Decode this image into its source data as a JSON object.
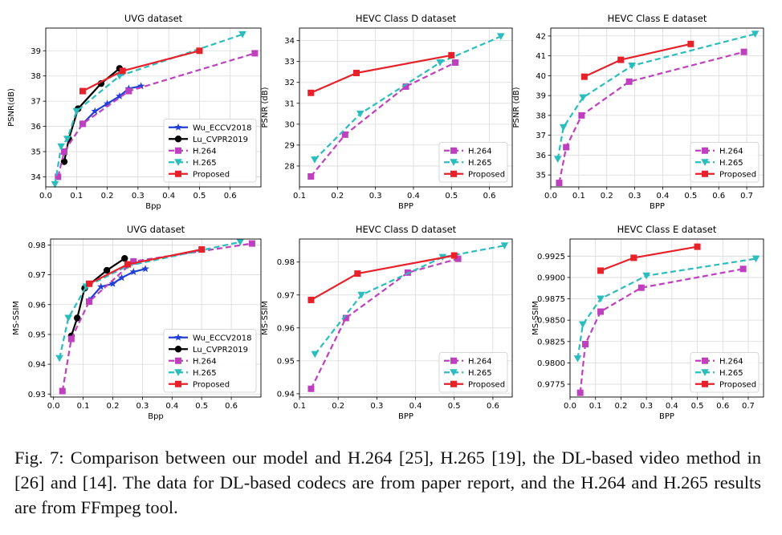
{
  "caption": "Fig. 7: Comparison between our model and H.264 [25], H.265 [19], the DL-based video method in [26] and [14]. The data for DL-based codecs are from paper report, and the H.264 and H.265 results are from FFmpeg tool.",
  "colors": {
    "Wu_ECCV2018": "#1f3fd6",
    "Lu_CVPR2019": "#000000",
    "H.264": "#bf40bf",
    "H.265": "#2bbdbd",
    "Proposed": "#e8202a"
  },
  "chart_data": [
    {
      "type": "line",
      "title": "UVG dataset",
      "xlabel": "Bpp",
      "ylabel": "PSNR(dB)",
      "xlim": [
        0.0,
        0.7
      ],
      "ylim": [
        33.6,
        39.9
      ],
      "xticks": [
        "0.0",
        "0.1",
        "0.2",
        "0.3",
        "0.4",
        "0.5",
        "0.6"
      ],
      "xtick_values": [
        0.0,
        0.1,
        0.2,
        0.3,
        0.4,
        0.5,
        0.6
      ],
      "yticks": [
        "34",
        "35",
        "36",
        "37",
        "38",
        "39"
      ],
      "ytick_values": [
        34,
        35,
        36,
        37,
        38,
        39
      ],
      "legend": "bottom-right",
      "grid": true,
      "series": [
        {
          "name": "Wu_ECCV2018",
          "marker": "star",
          "dash": false,
          "x": [
            0.12,
            0.16,
            0.2,
            0.24,
            0.27,
            0.31
          ],
          "y": [
            36.1,
            36.6,
            36.9,
            37.2,
            37.5,
            37.6
          ]
        },
        {
          "name": "Lu_CVPR2019",
          "marker": "circle",
          "dash": false,
          "x": [
            0.06,
            0.075,
            0.105,
            0.18,
            0.24
          ],
          "y": [
            34.6,
            35.5,
            36.7,
            37.7,
            38.3
          ]
        },
        {
          "name": "H.264",
          "marker": "square",
          "dash": true,
          "x": [
            0.04,
            0.06,
            0.12,
            0.27,
            0.68
          ],
          "y": [
            34.0,
            35.0,
            36.1,
            37.4,
            38.9
          ]
        },
        {
          "name": "H.265",
          "marker": "triangle-down",
          "dash": true,
          "x": [
            0.03,
            0.05,
            0.07,
            0.1,
            0.24,
            0.64
          ],
          "y": [
            33.7,
            35.2,
            35.5,
            36.6,
            38.0,
            39.65
          ]
        },
        {
          "name": "Proposed",
          "marker": "square",
          "dash": false,
          "x": [
            0.12,
            0.25,
            0.5
          ],
          "y": [
            37.4,
            38.2,
            39.0
          ]
        }
      ]
    },
    {
      "type": "line",
      "title": "HEVC Class D dataset",
      "xlabel": "BPP",
      "ylabel": "PSNR (dB)",
      "xlim": [
        0.1,
        0.66
      ],
      "ylim": [
        27.0,
        34.6
      ],
      "xticks": [
        "0.1",
        "0.2",
        "0.3",
        "0.4",
        "0.5",
        "0.6"
      ],
      "xtick_values": [
        0.1,
        0.2,
        0.3,
        0.4,
        0.5,
        0.6
      ],
      "yticks": [
        "28",
        "29",
        "30",
        "31",
        "32",
        "33",
        "34"
      ],
      "ytick_values": [
        28,
        29,
        30,
        31,
        32,
        33,
        34
      ],
      "legend": "bottom-right",
      "grid": true,
      "series": [
        {
          "name": "H.264",
          "marker": "square",
          "dash": true,
          "x": [
            0.13,
            0.22,
            0.38,
            0.51
          ],
          "y": [
            27.5,
            29.5,
            31.8,
            32.95
          ]
        },
        {
          "name": "H.265",
          "marker": "triangle-down",
          "dash": true,
          "x": [
            0.14,
            0.26,
            0.47,
            0.63
          ],
          "y": [
            28.3,
            30.5,
            32.95,
            34.2
          ]
        },
        {
          "name": "Proposed",
          "marker": "square",
          "dash": false,
          "x": [
            0.13,
            0.25,
            0.5
          ],
          "y": [
            31.5,
            32.45,
            33.3
          ]
        }
      ]
    },
    {
      "type": "line",
      "title": "HEVC Class E dataset",
      "xlabel": "BPP",
      "ylabel": "PSNR (dB)",
      "xlim": [
        0.0,
        0.76
      ],
      "ylim": [
        34.4,
        42.4
      ],
      "xticks": [
        "0.0",
        "0.1",
        "0.2",
        "0.3",
        "0.4",
        "0.5",
        "0.6",
        "0.7"
      ],
      "xtick_values": [
        0.0,
        0.1,
        0.2,
        0.3,
        0.4,
        0.5,
        0.6,
        0.7
      ],
      "yticks": [
        "35",
        "36",
        "37",
        "38",
        "39",
        "40",
        "41",
        "42"
      ],
      "ytick_values": [
        35,
        36,
        37,
        38,
        39,
        40,
        41,
        42
      ],
      "legend": "bottom-right",
      "grid": true,
      "series": [
        {
          "name": "H.264",
          "marker": "square",
          "dash": true,
          "x": [
            0.03,
            0.055,
            0.11,
            0.28,
            0.69
          ],
          "y": [
            34.6,
            36.4,
            38.0,
            39.7,
            41.2
          ]
        },
        {
          "name": "H.265",
          "marker": "triangle-down",
          "dash": true,
          "x": [
            0.025,
            0.045,
            0.115,
            0.29,
            0.73
          ],
          "y": [
            35.8,
            37.4,
            38.9,
            40.5,
            42.1
          ]
        },
        {
          "name": "Proposed",
          "marker": "square",
          "dash": false,
          "x": [
            0.12,
            0.25,
            0.5
          ],
          "y": [
            39.95,
            40.8,
            41.6
          ]
        }
      ]
    },
    {
      "type": "line",
      "title": "UVG dataset",
      "xlabel": "Bpp",
      "ylabel": "MS-SSIM",
      "xlim": [
        -0.01,
        0.7
      ],
      "ylim": [
        0.929,
        0.982
      ],
      "xticks": [
        "0.0",
        "0.1",
        "0.2",
        "0.3",
        "0.4",
        "0.5",
        "0.6"
      ],
      "xtick_values": [
        0.0,
        0.1,
        0.2,
        0.3,
        0.4,
        0.5,
        0.6
      ],
      "yticks": [
        "0.93",
        "0.94",
        "0.95",
        "0.96",
        "0.97",
        "0.98"
      ],
      "ytick_values": [
        0.93,
        0.94,
        0.95,
        0.96,
        0.97,
        0.98
      ],
      "legend": "bottom-right",
      "grid": true,
      "series": [
        {
          "name": "Wu_ECCV2018",
          "marker": "star",
          "dash": false,
          "x": [
            0.12,
            0.16,
            0.2,
            0.23,
            0.27,
            0.31
          ],
          "y": [
            0.9615,
            0.966,
            0.967,
            0.969,
            0.971,
            0.972
          ]
        },
        {
          "name": "Lu_CVPR2019",
          "marker": "circle",
          "dash": false,
          "x": [
            0.06,
            0.08,
            0.105,
            0.18,
            0.24
          ],
          "y": [
            0.9495,
            0.9555,
            0.9655,
            0.9715,
            0.9755
          ]
        },
        {
          "name": "H.264",
          "marker": "square",
          "dash": true,
          "x": [
            0.03,
            0.06,
            0.12,
            0.27,
            0.67
          ],
          "y": [
            0.931,
            0.9485,
            0.961,
            0.9745,
            0.9805
          ]
        },
        {
          "name": "H.265",
          "marker": "triangle-down",
          "dash": true,
          "x": [
            0.02,
            0.05,
            0.11,
            0.25,
            0.63
          ],
          "y": [
            0.942,
            0.9555,
            0.966,
            0.973,
            0.981
          ]
        },
        {
          "name": "Proposed",
          "marker": "square",
          "dash": false,
          "x": [
            0.12,
            0.25,
            0.5
          ],
          "y": [
            0.967,
            0.9735,
            0.9785
          ]
        }
      ]
    },
    {
      "type": "line",
      "title": "HEVC Class D dataset",
      "xlabel": "BPP",
      "ylabel": "MS-SSIM",
      "xlim": [
        0.1,
        0.65
      ],
      "ylim": [
        0.939,
        0.987
      ],
      "xticks": [
        "0.1",
        "0.2",
        "0.3",
        "0.4",
        "0.5",
        "0.6"
      ],
      "xtick_values": [
        0.1,
        0.2,
        0.3,
        0.4,
        0.5,
        0.6
      ],
      "yticks": [
        "0.94",
        "0.95",
        "0.96",
        "0.97",
        "0.98"
      ],
      "ytick_values": [
        0.94,
        0.95,
        0.96,
        0.97,
        0.98
      ],
      "legend": "bottom-right",
      "grid": true,
      "series": [
        {
          "name": "H.264",
          "marker": "square",
          "dash": true,
          "x": [
            0.13,
            0.22,
            0.38,
            0.51
          ],
          "y": [
            0.9415,
            0.963,
            0.9768,
            0.981
          ]
        },
        {
          "name": "H.265",
          "marker": "triangle-down",
          "dash": true,
          "x": [
            0.14,
            0.26,
            0.47,
            0.63
          ],
          "y": [
            0.952,
            0.97,
            0.9815,
            0.985
          ]
        },
        {
          "name": "Proposed",
          "marker": "square",
          "dash": false,
          "x": [
            0.13,
            0.25,
            0.5
          ],
          "y": [
            0.9685,
            0.9765,
            0.982
          ]
        }
      ]
    },
    {
      "type": "line",
      "title": "HEVC Class E dataset",
      "xlabel": "BPP",
      "ylabel": "MS-SSIM",
      "xlim": [
        0.0,
        0.76
      ],
      "ylim": [
        0.976,
        0.9945
      ],
      "xticks": [
        "0.0",
        "0.1",
        "0.2",
        "0.3",
        "0.4",
        "0.5",
        "0.6",
        "0.7"
      ],
      "xtick_values": [
        0.0,
        0.1,
        0.2,
        0.3,
        0.4,
        0.5,
        0.6,
        0.7
      ],
      "yticks": [
        "0.9775",
        "0.9800",
        "0.9825",
        "0.9850",
        "0.9875",
        "0.9900",
        "0.9925"
      ],
      "ytick_values": [
        0.9775,
        0.98,
        0.9825,
        0.985,
        0.9875,
        0.99,
        0.9925
      ],
      "legend": "bottom-right",
      "grid": true,
      "series": [
        {
          "name": "H.264",
          "marker": "square",
          "dash": true,
          "x": [
            0.04,
            0.06,
            0.12,
            0.28,
            0.68
          ],
          "y": [
            0.9765,
            0.9822,
            0.986,
            0.9888,
            0.991
          ]
        },
        {
          "name": "H.265",
          "marker": "triangle-down",
          "dash": true,
          "x": [
            0.03,
            0.05,
            0.12,
            0.3,
            0.73
          ],
          "y": [
            0.9805,
            0.9845,
            0.9875,
            0.9902,
            0.9922
          ]
        },
        {
          "name": "Proposed",
          "marker": "square",
          "dash": false,
          "x": [
            0.12,
            0.25,
            0.5
          ],
          "y": [
            0.9908,
            0.9923,
            0.9936
          ]
        }
      ]
    }
  ]
}
